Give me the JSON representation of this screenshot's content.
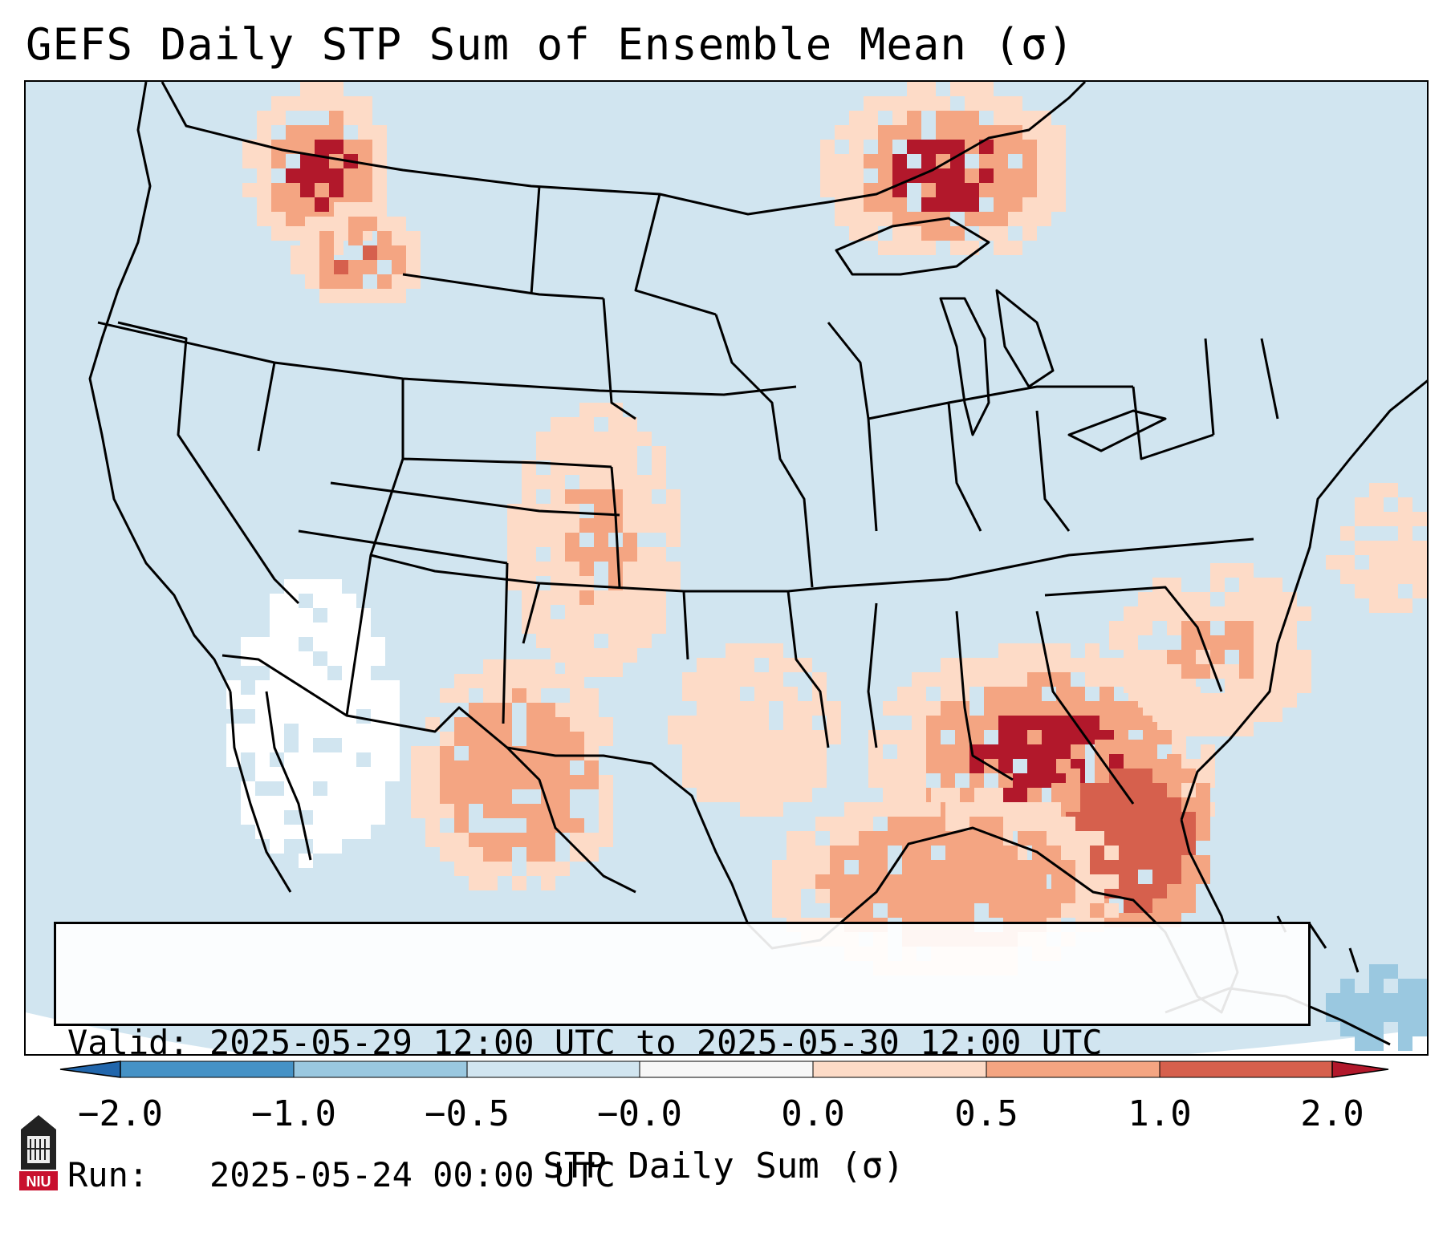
{
  "title": "GEFS Daily STP Sum of Ensemble Mean (σ)",
  "valid_line": "Valid: 2025-05-29 12:00 UTC to 2025-05-30 12:00 UTC",
  "run_line": "Run:   2025-05-24 00:00 UTC",
  "colorbar": {
    "label": "STP Daily Sum (σ)",
    "ticks": [
      "−2.0",
      "−1.0",
      "−0.5",
      "−0.0",
      "0.0",
      "0.5",
      "1.0",
      "2.0"
    ],
    "bin_colors": [
      "#4592c6",
      "#9ac8e0",
      "#d1e5f0",
      "#f7f7f7",
      "#fddbc7",
      "#f4a582",
      "#d6604d",
      "#b2182b"
    ],
    "extend": "both"
  },
  "map": {
    "projection": "Lambert conformal, CONUS",
    "background_color": "#d1e5f0",
    "outside_color": "#ffffff",
    "highlight_regions": [
      {
        "region": "Mississippi / Alabama / Georgia / north Florida",
        "level": "1.0 to 2.0"
      },
      {
        "region": "Northern Florida peninsula",
        "level": "1.0 to 2.0"
      },
      {
        "region": "Northern Idaho / Washington border",
        "level": "1.0 to 2.0"
      },
      {
        "region": "Ontario north of Lake Superior",
        "level": "1.0 to 2.0"
      },
      {
        "region": "Western Gulf of Mexico",
        "level": "0.0 to 1.0"
      },
      {
        "region": "Southwest deserts / Baja",
        "level": "-0.0 to 0.0"
      }
    ]
  },
  "logo": {
    "text": "NIU"
  }
}
